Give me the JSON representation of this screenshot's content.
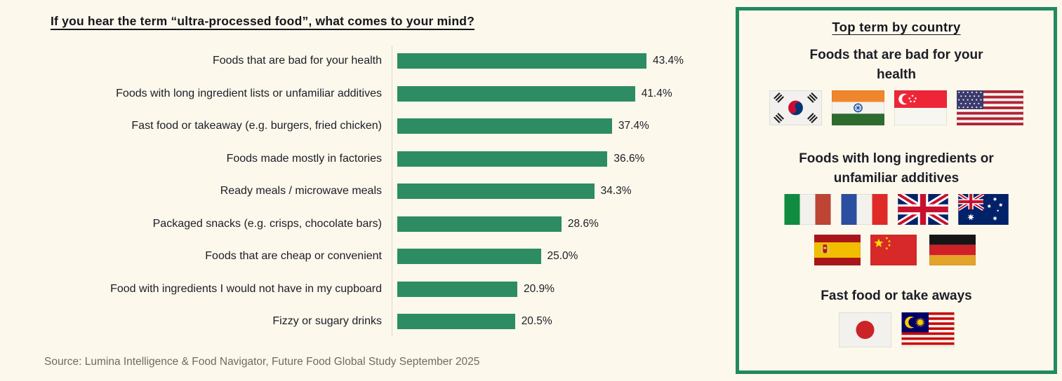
{
  "chart_data": {
    "type": "bar",
    "orientation": "horizontal",
    "title": "If you hear the term “ultra-processed food”, what comes to your mind?",
    "categories": [
      "Foods that are bad for your health",
      "Foods with long ingredient lists or unfamiliar additives",
      "Fast food or takeaway (e.g. burgers, fried chicken)",
      "Foods made mostly in factories",
      "Ready meals / microwave meals",
      "Packaged snacks (e.g. crisps, chocolate bars)",
      "Foods that are cheap or convenient",
      "Food with ingredients I would not have in my cupboard",
      "Fizzy or sugary drinks"
    ],
    "values": [
      43.4,
      41.4,
      37.4,
      36.6,
      34.3,
      28.6,
      25.0,
      20.9,
      20.5
    ],
    "value_labels": [
      "43.4%",
      "41.4%",
      "37.4%",
      "36.6%",
      "34.3%",
      "28.6%",
      "25.0%",
      "20.9%",
      "20.5%"
    ],
    "xlim": [
      0,
      45
    ],
    "grid": false,
    "bar_color": "#2D8C64",
    "source": "Source: Lumina Intelligence & Food Navigator, Future Food Global Study September 2025"
  },
  "panel": {
    "title": "Top term by country",
    "border_color": "#23895F",
    "sections": [
      {
        "heading": "Foods that are bad for your health",
        "rows": [
          [
            "south-korea",
            "india",
            "singapore",
            "usa"
          ]
        ]
      },
      {
        "heading": "Foods with long ingredients or unfamiliar additives",
        "rows": [
          [
            "italy",
            "france",
            "uk",
            "australia"
          ],
          [
            "spain",
            "china",
            "germany"
          ]
        ]
      },
      {
        "heading": "Fast food or take aways",
        "rows": [
          [
            "japan",
            "malaysia"
          ]
        ]
      }
    ]
  },
  "colors": {
    "background": "#FCF8EC",
    "bar": "#2D8C64",
    "panel_border": "#23895F",
    "text": "#1D1D26",
    "source_text": "#6F6B60"
  }
}
